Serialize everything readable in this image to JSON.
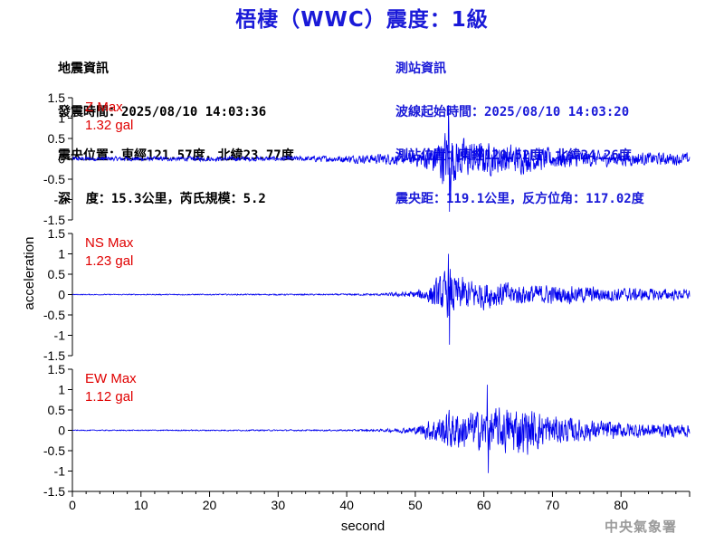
{
  "header": {
    "title": "梧棲（WWC）震度：1級"
  },
  "earthquake_info": {
    "heading": "地震資訊",
    "origin_time": "發震時間：2025/08/10 14:03:36",
    "epicenter": "震央位置：東經121.57度，北緯23.77度",
    "depth_magnitude": "深  度：15.3公里，芮氏規模：5.2"
  },
  "station_info": {
    "heading": "測站資訊",
    "wave_start": "波線起始時間：2025/08/10 14:03:20",
    "location": "測站位置：東經120.52度，北緯24.26度",
    "distance": "震央距：119.1公里，反方位角：117.02度"
  },
  "footer": {
    "agency": "中央氣象署"
  },
  "colors": {
    "title": "#1a1ad8",
    "trace": "#0000ee",
    "max_label": "#e00000",
    "station_text": "#1a1ad8"
  },
  "chart_data": {
    "type": "line",
    "xlabel": "second",
    "ylabel": "acceleration",
    "xlim": [
      0,
      90
    ],
    "xticks": [
      0,
      10,
      20,
      30,
      40,
      50,
      60,
      70,
      80
    ],
    "ylim": [
      -1.5,
      1.5
    ],
    "yticks": [
      "1.5",
      "1",
      "0.5",
      "0",
      "-0.5",
      "-1",
      "-1.5"
    ],
    "panels": [
      {
        "name": "Z Max",
        "max_label": "1.32 gal",
        "max": 1.32,
        "min": -1.3,
        "noise_before_p": 0.1,
        "envelope": [
          [
            0,
            0.09
          ],
          [
            30,
            0.1
          ],
          [
            38,
            0.14
          ],
          [
            45,
            0.22
          ],
          [
            50,
            0.3
          ],
          [
            52,
            0.55
          ],
          [
            54,
            1.1
          ],
          [
            55,
            1.32
          ],
          [
            56,
            0.9
          ],
          [
            58,
            0.8
          ],
          [
            60,
            0.7
          ],
          [
            62,
            0.65
          ],
          [
            65,
            0.6
          ],
          [
            70,
            0.45
          ],
          [
            75,
            0.35
          ],
          [
            80,
            0.3
          ],
          [
            85,
            0.27
          ],
          [
            90,
            0.25
          ]
        ]
      },
      {
        "name": "NS Max",
        "max_label": "1.23 gal",
        "max": 1.0,
        "min": -1.23,
        "noise_before_p": 0.02,
        "envelope": [
          [
            0,
            0.02
          ],
          [
            38,
            0.03
          ],
          [
            45,
            0.05
          ],
          [
            50,
            0.15
          ],
          [
            52,
            0.4
          ],
          [
            54,
            0.85
          ],
          [
            55,
            1.1
          ],
          [
            56,
            0.8
          ],
          [
            58,
            0.65
          ],
          [
            60,
            0.6
          ],
          [
            63,
            0.55
          ],
          [
            65,
            0.45
          ],
          [
            70,
            0.4
          ],
          [
            75,
            0.35
          ],
          [
            80,
            0.3
          ],
          [
            85,
            0.25
          ],
          [
            90,
            0.22
          ]
        ]
      },
      {
        "name": "EW Max",
        "max_label": "1.12 gal",
        "max": 1.12,
        "min": -1.05,
        "noise_before_p": 0.02,
        "envelope": [
          [
            0,
            0.02
          ],
          [
            38,
            0.03
          ],
          [
            45,
            0.05
          ],
          [
            50,
            0.15
          ],
          [
            52,
            0.45
          ],
          [
            55,
            0.85
          ],
          [
            57,
            0.8
          ],
          [
            60,
            0.85
          ],
          [
            62,
            0.9
          ],
          [
            65,
            1.05
          ],
          [
            67,
            0.9
          ],
          [
            70,
            0.65
          ],
          [
            72,
            0.55
          ],
          [
            75,
            0.45
          ],
          [
            80,
            0.35
          ],
          [
            85,
            0.3
          ],
          [
            90,
            0.3
          ]
        ]
      }
    ]
  }
}
